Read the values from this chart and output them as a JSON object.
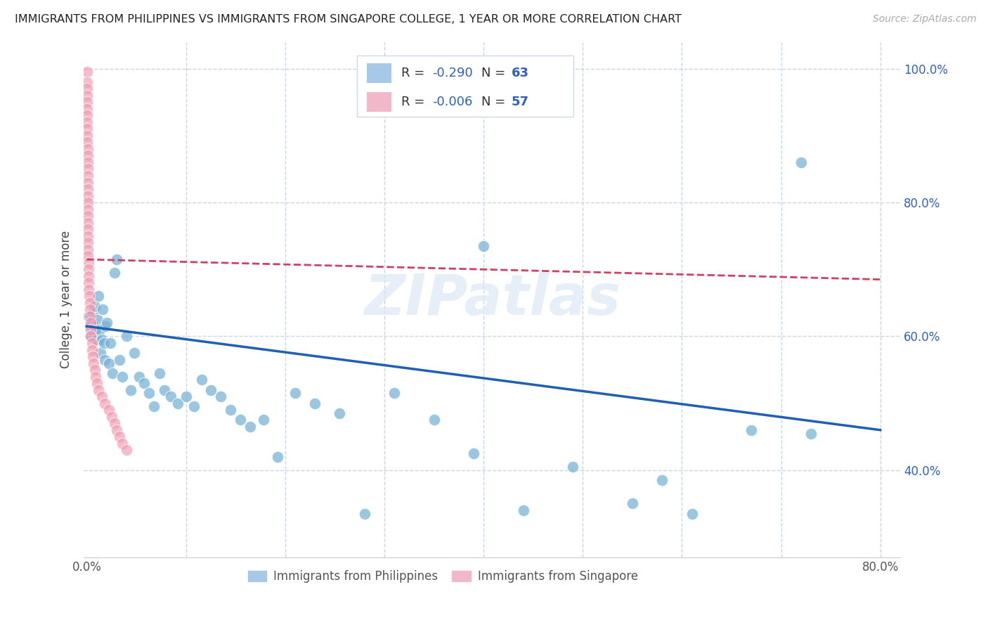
{
  "title": "IMMIGRANTS FROM PHILIPPINES VS IMMIGRANTS FROM SINGAPORE COLLEGE, 1 YEAR OR MORE CORRELATION CHART",
  "source": "Source: ZipAtlas.com",
  "ylabel": "College, 1 year or more",
  "xlim": [
    -0.003,
    0.82
  ],
  "ylim": [
    0.27,
    1.04
  ],
  "xticks": [
    0.0,
    0.1,
    0.2,
    0.3,
    0.4,
    0.5,
    0.6,
    0.7,
    0.8
  ],
  "xticklabels": [
    "0.0%",
    "",
    "",
    "",
    "",
    "",
    "",
    "",
    "80.0%"
  ],
  "yticks": [
    0.4,
    0.6,
    0.8,
    1.0
  ],
  "yticklabels": [
    "40.0%",
    "60.0%",
    "80.0%",
    "100.0%"
  ],
  "philippines_x": [
    0.002,
    0.003,
    0.004,
    0.005,
    0.006,
    0.007,
    0.008,
    0.009,
    0.01,
    0.011,
    0.012,
    0.013,
    0.014,
    0.015,
    0.016,
    0.017,
    0.018,
    0.019,
    0.02,
    0.022,
    0.024,
    0.026,
    0.028,
    0.03,
    0.033,
    0.036,
    0.04,
    0.044,
    0.048,
    0.053,
    0.058,
    0.063,
    0.068,
    0.073,
    0.078,
    0.085,
    0.092,
    0.1,
    0.108,
    0.116,
    0.125,
    0.135,
    0.145,
    0.155,
    0.165,
    0.178,
    0.192,
    0.21,
    0.23,
    0.255,
    0.28,
    0.31,
    0.35,
    0.39,
    0.44,
    0.49,
    0.55,
    0.61,
    0.67,
    0.73,
    0.4,
    0.58,
    0.72
  ],
  "philippines_y": [
    0.63,
    0.615,
    0.6,
    0.62,
    0.635,
    0.605,
    0.645,
    0.61,
    0.595,
    0.625,
    0.66,
    0.61,
    0.575,
    0.595,
    0.64,
    0.59,
    0.565,
    0.615,
    0.62,
    0.56,
    0.59,
    0.545,
    0.695,
    0.715,
    0.565,
    0.54,
    0.6,
    0.52,
    0.575,
    0.54,
    0.53,
    0.515,
    0.495,
    0.545,
    0.52,
    0.51,
    0.5,
    0.51,
    0.495,
    0.535,
    0.52,
    0.51,
    0.49,
    0.475,
    0.465,
    0.475,
    0.42,
    0.515,
    0.5,
    0.485,
    0.335,
    0.515,
    0.475,
    0.425,
    0.34,
    0.405,
    0.35,
    0.335,
    0.46,
    0.455,
    0.735,
    0.385,
    0.86
  ],
  "singapore_x": [
    0.0004,
    0.0004,
    0.0005,
    0.0005,
    0.0005,
    0.0005,
    0.0006,
    0.0006,
    0.0006,
    0.0007,
    0.0007,
    0.0008,
    0.0008,
    0.0009,
    0.0009,
    0.001,
    0.001,
    0.001,
    0.001,
    0.001,
    0.001,
    0.001,
    0.001,
    0.001,
    0.001,
    0.001,
    0.001,
    0.001,
    0.0015,
    0.0015,
    0.002,
    0.002,
    0.002,
    0.0025,
    0.003,
    0.003,
    0.003,
    0.004,
    0.004,
    0.004,
    0.005,
    0.005,
    0.006,
    0.007,
    0.008,
    0.009,
    0.01,
    0.012,
    0.015,
    0.018,
    0.022,
    0.025,
    0.028,
    0.03,
    0.033,
    0.036,
    0.04
  ],
  "singapore_y": [
    0.995,
    0.98,
    0.97,
    0.96,
    0.95,
    0.94,
    0.93,
    0.92,
    0.91,
    0.9,
    0.89,
    0.88,
    0.87,
    0.86,
    0.85,
    0.84,
    0.83,
    0.82,
    0.81,
    0.8,
    0.79,
    0.78,
    0.77,
    0.76,
    0.75,
    0.74,
    0.73,
    0.72,
    0.71,
    0.7,
    0.69,
    0.68,
    0.67,
    0.66,
    0.65,
    0.64,
    0.63,
    0.62,
    0.61,
    0.6,
    0.59,
    0.58,
    0.57,
    0.56,
    0.55,
    0.54,
    0.53,
    0.52,
    0.51,
    0.5,
    0.49,
    0.48,
    0.47,
    0.46,
    0.45,
    0.44,
    0.43
  ],
  "blue_line_x": [
    0.0,
    0.8
  ],
  "blue_line_y": [
    0.615,
    0.46
  ],
  "pink_line_x": [
    0.0,
    0.8
  ],
  "pink_line_y": [
    0.715,
    0.685
  ],
  "dot_color_blue": "#7ab3d5",
  "dot_color_pink": "#f09ab0",
  "line_color_blue": "#2060b0",
  "line_color_pink": "#d04060",
  "legend_box_color": "#a8c8e8",
  "legend_pink_color": "#f0b8c8",
  "legend_text_color": "#3060c0",
  "watermark": "ZIPatlas",
  "watermark_color": "#dce8f5",
  "bg_color": "#ffffff",
  "grid_color": "#c8d4e8"
}
